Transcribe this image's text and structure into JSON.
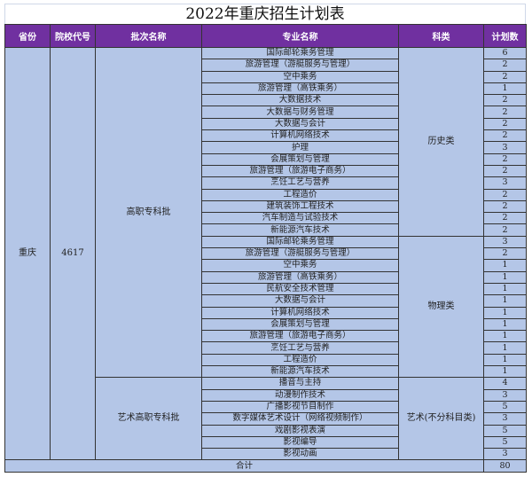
{
  "title": "2022年重庆招生计划表",
  "headers": [
    "省份",
    "院校代号",
    "批次名称",
    "专业名称",
    "科类",
    "计划数"
  ],
  "province": "重庆",
  "school_code": "4617",
  "batches": [
    {
      "name": "高职专科批",
      "groups": [
        {
          "category": "历史类",
          "rows": [
            {
              "major": "国际邮轮乘务管理",
              "count": "6"
            },
            {
              "major": "旅游管理（游艇服务与管理）",
              "count": "2"
            },
            {
              "major": "空中乘务",
              "count": "2"
            },
            {
              "major": "旅游管理（高铁乘务）",
              "count": "1"
            },
            {
              "major": "大数据技术",
              "count": "2"
            },
            {
              "major": "大数据与财务管理",
              "count": "2"
            },
            {
              "major": "大数据与会计",
              "count": "2"
            },
            {
              "major": "计算机网络技术",
              "count": "2"
            },
            {
              "major": "护理",
              "count": "3"
            },
            {
              "major": "会展策划与管理",
              "count": "2"
            },
            {
              "major": "旅游管理（旅游电子商务）",
              "count": "2"
            },
            {
              "major": "烹饪工艺与营养",
              "count": "3"
            },
            {
              "major": "工程造价",
              "count": "2"
            },
            {
              "major": "建筑装饰工程技术",
              "count": "2"
            },
            {
              "major": "汽车制造与试验技术",
              "count": "2"
            },
            {
              "major": "新能源汽车技术",
              "count": "2"
            }
          ]
        },
        {
          "category": "物理类",
          "rows": [
            {
              "major": "国际邮轮乘务管理",
              "count": "3"
            },
            {
              "major": "旅游管理（游艇服务与管理）",
              "count": "2"
            },
            {
              "major": "空中乘务",
              "count": "1"
            },
            {
              "major": "旅游管理（高铁乘务）",
              "count": "1"
            },
            {
              "major": "民航安全技术管理",
              "count": "1"
            },
            {
              "major": "大数据与会计",
              "count": "1"
            },
            {
              "major": "计算机网络技术",
              "count": "1"
            },
            {
              "major": "会展策划与管理",
              "count": "1"
            },
            {
              "major": "旅游管理（旅游电子商务）",
              "count": "1"
            },
            {
              "major": "烹饪工艺与营养",
              "count": "1"
            },
            {
              "major": "工程造价",
              "count": "1"
            },
            {
              "major": "新能源汽车技术",
              "count": "1"
            }
          ]
        }
      ]
    },
    {
      "name": "艺术高职专科批",
      "groups": [
        {
          "category": "艺术(不分科目类)",
          "rows": [
            {
              "major": "播音与主持",
              "count": "4"
            },
            {
              "major": "动漫制作技术",
              "count": "3"
            },
            {
              "major": "广播影视节目制作",
              "count": "5"
            },
            {
              "major": "数字媒体艺术设计（网络视频制作）",
              "count": "3"
            },
            {
              "major": "戏剧影视表演",
              "count": "5"
            },
            {
              "major": "影视编导",
              "count": "5"
            },
            {
              "major": "影视动画",
              "count": "3"
            }
          ]
        }
      ]
    }
  ],
  "total_label": "合计",
  "total": "80",
  "colors": {
    "header_bg": "#7030a0",
    "cell_bg": "#b4c6e7"
  }
}
